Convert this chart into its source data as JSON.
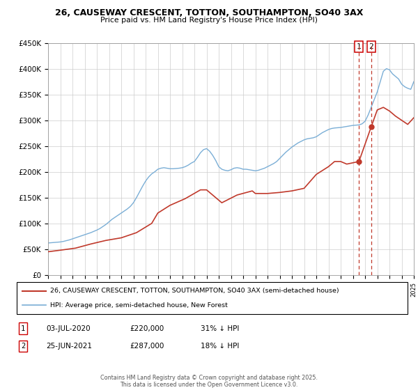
{
  "title": "26, CAUSEWAY CRESCENT, TOTTON, SOUTHAMPTON, SO40 3AX",
  "subtitle": "Price paid vs. HM Land Registry's House Price Index (HPI)",
  "legend_label1": "26, CAUSEWAY CRESCENT, TOTTON, SOUTHAMPTON, SO40 3AX (semi-detached house)",
  "legend_label2": "HPI: Average price, semi-detached house, New Forest",
  "color_hpi": "#7aaed6",
  "color_price": "#c0392b",
  "vline_color": "#c0392b",
  "footer": "Contains HM Land Registry data © Crown copyright and database right 2025.\nThis data is licensed under the Open Government Licence v3.0.",
  "sale1_label": "1",
  "sale1_date": "03-JUL-2020",
  "sale1_price": "£220,000",
  "sale1_hpi": "31% ↓ HPI",
  "sale1_year": 2020.5,
  "sale1_value": 220000,
  "sale2_label": "2",
  "sale2_date": "25-JUN-2021",
  "sale2_price": "£287,000",
  "sale2_hpi": "18% ↓ HPI",
  "sale2_year": 2021.5,
  "sale2_value": 287000,
  "xmin": 1995,
  "xmax": 2025,
  "ymin": 0,
  "ymax": 450000,
  "yticks": [
    0,
    50000,
    100000,
    150000,
    200000,
    250000,
    300000,
    350000,
    400000,
    450000
  ],
  "ytick_labels": [
    "£0",
    "£50K",
    "£100K",
    "£150K",
    "£200K",
    "£250K",
    "£300K",
    "£350K",
    "£400K",
    "£450K"
  ],
  "hpi_years": [
    1995.0,
    1995.25,
    1995.5,
    1995.75,
    1996.0,
    1996.25,
    1996.5,
    1996.75,
    1997.0,
    1997.25,
    1997.5,
    1997.75,
    1998.0,
    1998.25,
    1998.5,
    1998.75,
    1999.0,
    1999.25,
    1999.5,
    1999.75,
    2000.0,
    2000.25,
    2000.5,
    2000.75,
    2001.0,
    2001.25,
    2001.5,
    2001.75,
    2002.0,
    2002.25,
    2002.5,
    2002.75,
    2003.0,
    2003.25,
    2003.5,
    2003.75,
    2004.0,
    2004.25,
    2004.5,
    2004.75,
    2005.0,
    2005.25,
    2005.5,
    2005.75,
    2006.0,
    2006.25,
    2006.5,
    2006.75,
    2007.0,
    2007.25,
    2007.5,
    2007.75,
    2008.0,
    2008.25,
    2008.5,
    2008.75,
    2009.0,
    2009.25,
    2009.5,
    2009.75,
    2010.0,
    2010.25,
    2010.5,
    2010.75,
    2011.0,
    2011.25,
    2011.5,
    2011.75,
    2012.0,
    2012.25,
    2012.5,
    2012.75,
    2013.0,
    2013.25,
    2013.5,
    2013.75,
    2014.0,
    2014.25,
    2014.5,
    2014.75,
    2015.0,
    2015.25,
    2015.5,
    2015.75,
    2016.0,
    2016.25,
    2016.5,
    2016.75,
    2017.0,
    2017.25,
    2017.5,
    2017.75,
    2018.0,
    2018.25,
    2018.5,
    2018.75,
    2019.0,
    2019.25,
    2019.5,
    2019.75,
    2020.0,
    2020.25,
    2020.5,
    2020.75,
    2021.0,
    2021.25,
    2021.5,
    2021.75,
    2022.0,
    2022.25,
    2022.5,
    2022.75,
    2023.0,
    2023.25,
    2023.5,
    2023.75,
    2024.0,
    2024.25,
    2024.5,
    2024.75,
    2025.0
  ],
  "hpi_values": [
    62000,
    62500,
    63000,
    63500,
    64000,
    65000,
    66500,
    68000,
    70000,
    72000,
    74000,
    76000,
    78000,
    80000,
    82000,
    84500,
    87000,
    90000,
    94000,
    98000,
    103000,
    108000,
    112000,
    116000,
    120000,
    124000,
    128000,
    133000,
    140000,
    150000,
    161000,
    172000,
    182000,
    190000,
    196000,
    200000,
    205000,
    207000,
    208000,
    207000,
    206000,
    206000,
    206500,
    207000,
    208000,
    210000,
    213000,
    217000,
    220000,
    228000,
    237000,
    243000,
    245000,
    240000,
    232000,
    222000,
    210000,
    205000,
    203000,
    202000,
    204000,
    207000,
    208000,
    207000,
    205000,
    205000,
    204000,
    203000,
    202000,
    203000,
    205000,
    207000,
    210000,
    213000,
    216000,
    220000,
    226000,
    232000,
    238000,
    243000,
    248000,
    252000,
    256000,
    259000,
    262000,
    264000,
    265000,
    266000,
    268000,
    272000,
    276000,
    279000,
    282000,
    284000,
    285000,
    285500,
    286000,
    287000,
    288000,
    289000,
    290000,
    290500,
    291000,
    293000,
    298000,
    310000,
    325000,
    340000,
    355000,
    375000,
    395000,
    400000,
    398000,
    390000,
    385000,
    380000,
    370000,
    365000,
    362000,
    360000,
    375000
  ],
  "price_years": [
    1995.0,
    1996.0,
    1997.25,
    1998.5,
    1999.75,
    2001.0,
    2002.25,
    2003.5,
    2004.0,
    2005.0,
    2006.25,
    2007.5,
    2008.0,
    2009.25,
    2010.5,
    2011.75,
    2012.0,
    2013.0,
    2014.0,
    2015.0,
    2016.0,
    2017.0,
    2018.0,
    2018.5,
    2019.0,
    2019.5,
    2020.5,
    2021.5,
    2022.0,
    2022.5,
    2023.0,
    2023.5,
    2024.0,
    2024.5,
    2025.0
  ],
  "price_values": [
    45000,
    48000,
    52000,
    60000,
    67000,
    72000,
    82000,
    100000,
    120000,
    135000,
    148000,
    165000,
    165000,
    140000,
    155000,
    163000,
    158000,
    158000,
    160000,
    163000,
    168000,
    195000,
    210000,
    220000,
    220000,
    215000,
    220000,
    287000,
    320000,
    325000,
    318000,
    308000,
    300000,
    292000,
    305000
  ]
}
